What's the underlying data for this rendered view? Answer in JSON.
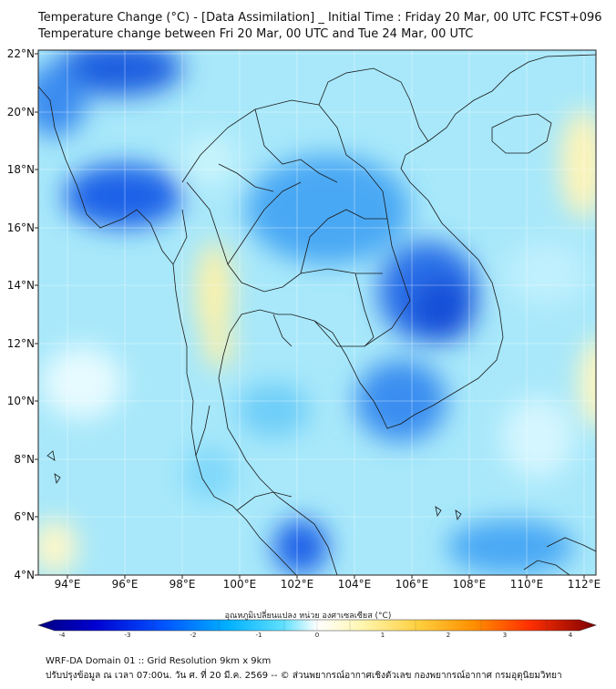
{
  "title_line1": "Temperature Change (°C) - [Data Assimilation] _ Initial Time : Friday 20 Mar, 00 UTC FCST+096",
  "title_line2": "Temperature change between Fri 20 Mar, 00 UTC and Tue 24 Mar, 00 UTC",
  "lat_labels": [
    "22°N",
    "20°N",
    "18°N",
    "16°N",
    "14°N",
    "12°N",
    "10°N",
    "8°N",
    "6°N",
    "4°N"
  ],
  "lon_labels": [
    "94°E",
    "96°E",
    "98°E",
    "100°E",
    "102°E",
    "104°E",
    "106°E",
    "108°E",
    "110°E",
    "112°E"
  ],
  "colorbar": {
    "title": "อุณหภูมิเปลี่ยนแปลง หน่วย องศาเซลเซียส (°C)",
    "ticks": [
      "-4",
      "-3",
      "-2",
      "-1",
      "0",
      "1",
      "2",
      "3",
      "4"
    ],
    "colors": [
      "#00007f",
      "#0000d0",
      "#0040ff",
      "#00a0ff",
      "#40d8ff",
      "#b0f0ff",
      "#ffffff",
      "#fff6b0",
      "#ffe060",
      "#ffb000",
      "#ff6000",
      "#d00000",
      "#7f0000"
    ]
  },
  "footer_line1": "WRF-DA Domain 01 :: Grid Resolution 9km x 9km",
  "footer_line2": "ปรับปรุงข้อมูล ณ เวลา 07:00น. วัน ศ. ที่ 20 มี.ค. 2569 -- © ส่วนพยากรณ์อากาศเชิงตัวเลข กองพยากรณ์อากาศ กรมอุตุนิยมวิทยา"
}
